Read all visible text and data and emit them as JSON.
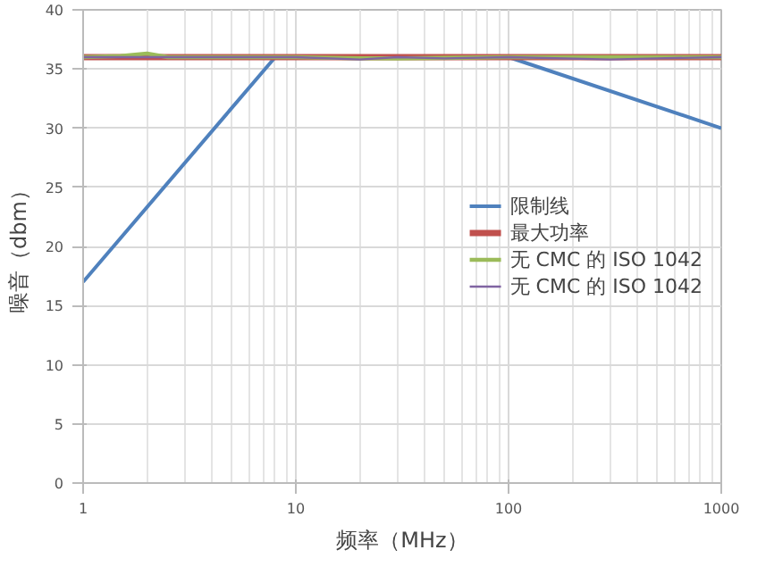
{
  "chart_data": {
    "type": "line",
    "xlabel": "频率（MHz）",
    "ylabel": "噪音（dbm）",
    "log": "x",
    "xlim": [
      1,
      1000
    ],
    "ylim": [
      0,
      40
    ],
    "xticks": [
      1,
      10,
      100,
      1000
    ],
    "yticks": [
      0,
      5,
      10,
      15,
      20,
      25,
      30,
      35,
      40
    ],
    "grid": true,
    "legend": "right",
    "marker": "none",
    "line_style": "solid",
    "series": [
      {
        "name": "限制线",
        "color": "#4f81bd",
        "x": [
          1,
          8,
          100,
          1000
        ],
        "values": [
          17,
          36,
          36,
          30
        ]
      },
      {
        "name": "最大功率",
        "color": "#c0504d",
        "x": [
          1,
          2,
          5,
          10,
          30,
          100,
          300,
          1000
        ],
        "values": [
          36,
          36,
          36,
          36,
          36,
          36,
          36,
          36
        ]
      },
      {
        "name": "无 CMC 的 ISO 1042",
        "color": "#9bbb59",
        "x": [
          1,
          1.5,
          2,
          2.5,
          5,
          10,
          20,
          30,
          100,
          1000
        ],
        "values": [
          36,
          36.1,
          36.3,
          36,
          36,
          36,
          35.9,
          35.9,
          36,
          36
        ]
      },
      {
        "name": "无 CMC 的 ISO 1042",
        "color": "#8064a2",
        "x": [
          1,
          5,
          10,
          20,
          30,
          50,
          100,
          300,
          500,
          1000
        ],
        "values": [
          36,
          36,
          36,
          35.8,
          36,
          35.9,
          36,
          35.8,
          35.9,
          36
        ]
      }
    ]
  }
}
